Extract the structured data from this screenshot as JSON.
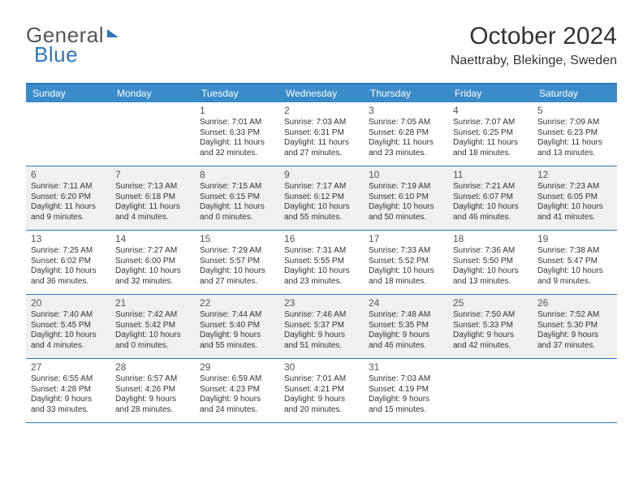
{
  "logo": {
    "part1": "General",
    "part2": "Blue"
  },
  "title": "October 2024",
  "location": "Naettraby, Blekinge, Sweden",
  "colors": {
    "header_bar": "#3b8bc9",
    "border": "#2c77bb",
    "alt_row_bg": "#eff0f0",
    "page_bg": "#ffffff",
    "text": "#333333"
  },
  "dayNames": [
    "Sunday",
    "Monday",
    "Tuesday",
    "Wednesday",
    "Thursday",
    "Friday",
    "Saturday"
  ],
  "weeks": [
    {
      "alt": false,
      "cells": [
        null,
        null,
        {
          "n": "1",
          "sr": "Sunrise: 7:01 AM",
          "ss": "Sunset: 6:33 PM",
          "dl": "Daylight: 11 hours and 32 minutes."
        },
        {
          "n": "2",
          "sr": "Sunrise: 7:03 AM",
          "ss": "Sunset: 6:31 PM",
          "dl": "Daylight: 11 hours and 27 minutes."
        },
        {
          "n": "3",
          "sr": "Sunrise: 7:05 AM",
          "ss": "Sunset: 6:28 PM",
          "dl": "Daylight: 11 hours and 23 minutes."
        },
        {
          "n": "4",
          "sr": "Sunrise: 7:07 AM",
          "ss": "Sunset: 6:25 PM",
          "dl": "Daylight: 11 hours and 18 minutes."
        },
        {
          "n": "5",
          "sr": "Sunrise: 7:09 AM",
          "ss": "Sunset: 6:23 PM",
          "dl": "Daylight: 11 hours and 13 minutes."
        }
      ]
    },
    {
      "alt": true,
      "cells": [
        {
          "n": "6",
          "sr": "Sunrise: 7:11 AM",
          "ss": "Sunset: 6:20 PM",
          "dl": "Daylight: 11 hours and 9 minutes."
        },
        {
          "n": "7",
          "sr": "Sunrise: 7:13 AM",
          "ss": "Sunset: 6:18 PM",
          "dl": "Daylight: 11 hours and 4 minutes."
        },
        {
          "n": "8",
          "sr": "Sunrise: 7:15 AM",
          "ss": "Sunset: 6:15 PM",
          "dl": "Daylight: 11 hours and 0 minutes."
        },
        {
          "n": "9",
          "sr": "Sunrise: 7:17 AM",
          "ss": "Sunset: 6:12 PM",
          "dl": "Daylight: 10 hours and 55 minutes."
        },
        {
          "n": "10",
          "sr": "Sunrise: 7:19 AM",
          "ss": "Sunset: 6:10 PM",
          "dl": "Daylight: 10 hours and 50 minutes."
        },
        {
          "n": "11",
          "sr": "Sunrise: 7:21 AM",
          "ss": "Sunset: 6:07 PM",
          "dl": "Daylight: 10 hours and 46 minutes."
        },
        {
          "n": "12",
          "sr": "Sunrise: 7:23 AM",
          "ss": "Sunset: 6:05 PM",
          "dl": "Daylight: 10 hours and 41 minutes."
        }
      ]
    },
    {
      "alt": false,
      "cells": [
        {
          "n": "13",
          "sr": "Sunrise: 7:25 AM",
          "ss": "Sunset: 6:02 PM",
          "dl": "Daylight: 10 hours and 36 minutes."
        },
        {
          "n": "14",
          "sr": "Sunrise: 7:27 AM",
          "ss": "Sunset: 6:00 PM",
          "dl": "Daylight: 10 hours and 32 minutes."
        },
        {
          "n": "15",
          "sr": "Sunrise: 7:29 AM",
          "ss": "Sunset: 5:57 PM",
          "dl": "Daylight: 10 hours and 27 minutes."
        },
        {
          "n": "16",
          "sr": "Sunrise: 7:31 AM",
          "ss": "Sunset: 5:55 PM",
          "dl": "Daylight: 10 hours and 23 minutes."
        },
        {
          "n": "17",
          "sr": "Sunrise: 7:33 AM",
          "ss": "Sunset: 5:52 PM",
          "dl": "Daylight: 10 hours and 18 minutes."
        },
        {
          "n": "18",
          "sr": "Sunrise: 7:36 AM",
          "ss": "Sunset: 5:50 PM",
          "dl": "Daylight: 10 hours and 13 minutes."
        },
        {
          "n": "19",
          "sr": "Sunrise: 7:38 AM",
          "ss": "Sunset: 5:47 PM",
          "dl": "Daylight: 10 hours and 9 minutes."
        }
      ]
    },
    {
      "alt": true,
      "cells": [
        {
          "n": "20",
          "sr": "Sunrise: 7:40 AM",
          "ss": "Sunset: 5:45 PM",
          "dl": "Daylight: 10 hours and 4 minutes."
        },
        {
          "n": "21",
          "sr": "Sunrise: 7:42 AM",
          "ss": "Sunset: 5:42 PM",
          "dl": "Daylight: 10 hours and 0 minutes."
        },
        {
          "n": "22",
          "sr": "Sunrise: 7:44 AM",
          "ss": "Sunset: 5:40 PM",
          "dl": "Daylight: 9 hours and 55 minutes."
        },
        {
          "n": "23",
          "sr": "Sunrise: 7:46 AM",
          "ss": "Sunset: 5:37 PM",
          "dl": "Daylight: 9 hours and 51 minutes."
        },
        {
          "n": "24",
          "sr": "Sunrise: 7:48 AM",
          "ss": "Sunset: 5:35 PM",
          "dl": "Daylight: 9 hours and 46 minutes."
        },
        {
          "n": "25",
          "sr": "Sunrise: 7:50 AM",
          "ss": "Sunset: 5:33 PM",
          "dl": "Daylight: 9 hours and 42 minutes."
        },
        {
          "n": "26",
          "sr": "Sunrise: 7:52 AM",
          "ss": "Sunset: 5:30 PM",
          "dl": "Daylight: 9 hours and 37 minutes."
        }
      ]
    },
    {
      "alt": false,
      "cells": [
        {
          "n": "27",
          "sr": "Sunrise: 6:55 AM",
          "ss": "Sunset: 4:28 PM",
          "dl": "Daylight: 9 hours and 33 minutes."
        },
        {
          "n": "28",
          "sr": "Sunrise: 6:57 AM",
          "ss": "Sunset: 4:26 PM",
          "dl": "Daylight: 9 hours and 28 minutes."
        },
        {
          "n": "29",
          "sr": "Sunrise: 6:59 AM",
          "ss": "Sunset: 4:23 PM",
          "dl": "Daylight: 9 hours and 24 minutes."
        },
        {
          "n": "30",
          "sr": "Sunrise: 7:01 AM",
          "ss": "Sunset: 4:21 PM",
          "dl": "Daylight: 9 hours and 20 minutes."
        },
        {
          "n": "31",
          "sr": "Sunrise: 7:03 AM",
          "ss": "Sunset: 4:19 PM",
          "dl": "Daylight: 9 hours and 15 minutes."
        },
        null,
        null
      ]
    }
  ]
}
